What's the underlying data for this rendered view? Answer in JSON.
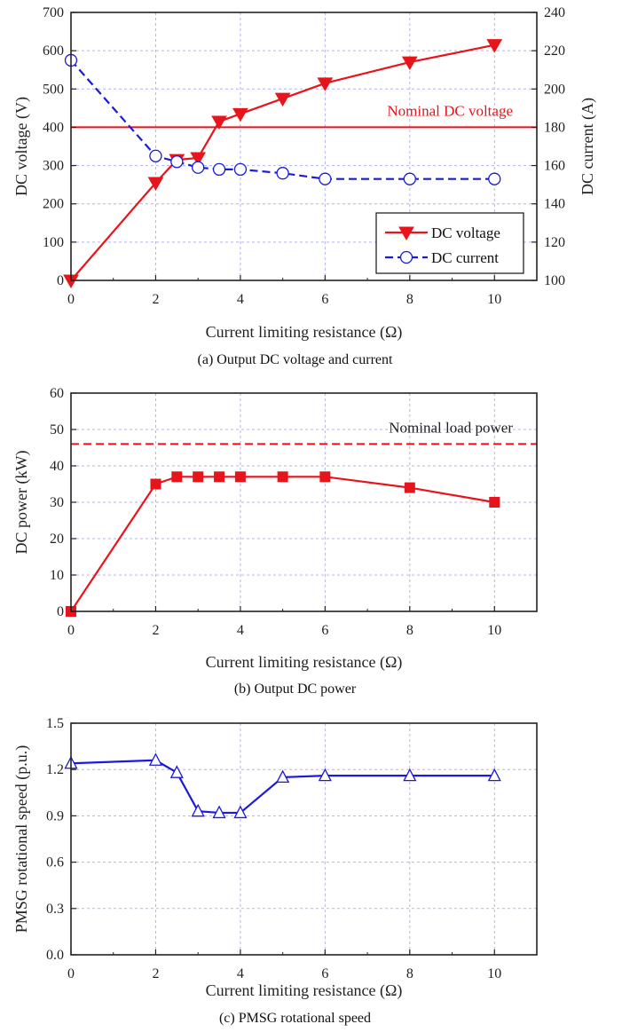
{
  "colors": {
    "red": "#e8141b",
    "blue": "#1a1adb",
    "grid": "#b3b3e6",
    "axis": "#222222"
  },
  "chart_data": [
    {
      "id": "a",
      "type": "line",
      "caption": "(a) Output DC voltage and current",
      "xlabel": "Current limiting resistance (Ω)",
      "ylabel": "DC voltage (V)",
      "y2label": "DC current (A)",
      "xlim": [
        0,
        11
      ],
      "ylim": [
        0,
        700
      ],
      "y2lim": [
        100,
        240
      ],
      "xticks": [
        0,
        2,
        4,
        6,
        8,
        10
      ],
      "yticks": [
        0,
        100,
        200,
        300,
        400,
        500,
        600,
        700
      ],
      "y2ticks": [
        100,
        120,
        140,
        160,
        180,
        200,
        220,
        240
      ],
      "grid": true,
      "legend_position": "bottom-right",
      "series": [
        {
          "name": "DC voltage",
          "axis": "left",
          "color": "#e8141b",
          "marker": "triangle-down",
          "dash": "solid",
          "x": [
            0,
            2,
            2.5,
            3,
            3.5,
            4,
            5,
            6,
            8,
            10
          ],
          "y": [
            0,
            255,
            315,
            320,
            415,
            435,
            475,
            515,
            570,
            615
          ]
        },
        {
          "name": "DC current",
          "axis": "right",
          "color": "#1a1adb",
          "marker": "circle-open",
          "dash": "dashed",
          "x": [
            0,
            2,
            2.5,
            3,
            3.5,
            4,
            5,
            6,
            8,
            10
          ],
          "y": [
            215,
            165,
            162,
            159,
            158,
            158,
            156,
            153,
            153,
            153
          ]
        }
      ],
      "reference_line": {
        "label": "Nominal DC voltage",
        "y": 400,
        "axis": "left",
        "color": "#e8141b",
        "dash": "solid"
      }
    },
    {
      "id": "b",
      "type": "line",
      "caption": "(b) Output DC power",
      "xlabel": "Current limiting resistance (Ω)",
      "ylabel": "DC power (kW)",
      "xlim": [
        0,
        11
      ],
      "ylim": [
        0,
        60
      ],
      "xticks": [
        0,
        2,
        4,
        6,
        8,
        10
      ],
      "yticks": [
        0,
        10,
        20,
        30,
        40,
        50,
        60
      ],
      "grid": true,
      "series": [
        {
          "color": "#e8141b",
          "marker": "square",
          "dash": "solid",
          "x": [
            0,
            2,
            2.5,
            3,
            3.5,
            4,
            5,
            6,
            8,
            10
          ],
          "y": [
            0,
            35,
            37,
            37,
            37,
            37,
            37,
            37,
            34,
            30
          ]
        }
      ],
      "reference_line": {
        "label": "Nominal load power",
        "y": 46,
        "axis": "left",
        "color": "#e8141b",
        "dash": "dashed"
      }
    },
    {
      "id": "c",
      "type": "line",
      "caption": "(c) PMSG rotational speed",
      "xlabel": "Current limiting resistance (Ω)",
      "ylabel": "PMSG rotational speed (p.u.)",
      "xlim": [
        0,
        11
      ],
      "ylim": [
        0,
        1.5
      ],
      "xticks": [
        0,
        2,
        4,
        6,
        8,
        10
      ],
      "yticks": [
        0.0,
        0.3,
        0.6,
        0.9,
        1.2,
        1.5
      ],
      "ytick_labels": [
        "0.0",
        "0.3",
        "0.6",
        "0.9",
        "1.2",
        "1.5"
      ],
      "grid": true,
      "series": [
        {
          "color": "#1a1adb",
          "marker": "triangle-up-open",
          "dash": "solid",
          "x": [
            0,
            2,
            2.5,
            3,
            3.5,
            4,
            5,
            6,
            8,
            10
          ],
          "y": [
            1.24,
            1.26,
            1.18,
            0.93,
            0.92,
            0.92,
            1.15,
            1.16,
            1.16,
            1.16
          ]
        }
      ]
    }
  ]
}
